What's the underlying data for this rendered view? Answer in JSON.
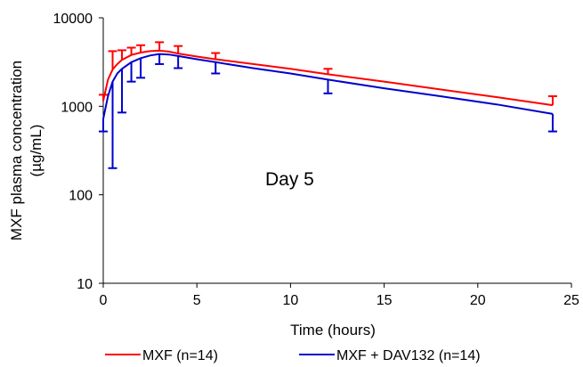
{
  "chart_data": {
    "type": "line",
    "annotation": "Day 5",
    "xlabel": "Time (hours)",
    "ylabel_lines": [
      "MXF plasma concentration",
      "(µg/mL)"
    ],
    "xlim": [
      0,
      25
    ],
    "ylim": [
      10,
      10000
    ],
    "yscale": "log",
    "grid": false,
    "legend_position": "bottom",
    "x_ticks": [
      0,
      5,
      10,
      15,
      20,
      25
    ],
    "y_ticks": [
      10,
      100,
      1000,
      10000
    ],
    "x_tick_labels": [
      "0",
      "5",
      "10",
      "15",
      "20",
      "25"
    ],
    "y_tick_labels": [
      "10",
      "100",
      "1000",
      "10000"
    ],
    "series": [
      {
        "name": "MXF (n=14)",
        "color": "#ff0000",
        "curve": [
          [
            0,
            1150
          ],
          [
            0.25,
            2000
          ],
          [
            0.5,
            2600
          ],
          [
            0.75,
            3000
          ],
          [
            1,
            3350
          ],
          [
            1.5,
            3800
          ],
          [
            2,
            4050
          ],
          [
            2.5,
            4200
          ],
          [
            3,
            4250
          ],
          [
            3.5,
            4150
          ],
          [
            4,
            3950
          ],
          [
            5,
            3650
          ],
          [
            6,
            3400
          ],
          [
            8,
            3000
          ],
          [
            10,
            2650
          ],
          [
            12,
            2300
          ],
          [
            15,
            1900
          ],
          [
            18,
            1550
          ],
          [
            21,
            1270
          ],
          [
            24,
            1030
          ]
        ],
        "error_bars": [
          {
            "x": 0,
            "upper": 1350
          },
          {
            "x": 0.5,
            "upper": 4200
          },
          {
            "x": 1,
            "upper": 4300
          },
          {
            "x": 1.5,
            "upper": 4600
          },
          {
            "x": 2,
            "upper": 4900
          },
          {
            "x": 3,
            "upper": 5300
          },
          {
            "x": 4,
            "upper": 4800
          },
          {
            "x": 6,
            "upper": 4000
          },
          {
            "x": 12,
            "upper": 2650
          },
          {
            "x": 24,
            "upper": 1300
          }
        ]
      },
      {
        "name": "MXF + DAV132 (n=14)",
        "color": "#0000cc",
        "curve": [
          [
            0,
            720
          ],
          [
            0.25,
            1300
          ],
          [
            0.5,
            1900
          ],
          [
            0.75,
            2350
          ],
          [
            1,
            2650
          ],
          [
            1.5,
            3150
          ],
          [
            2,
            3500
          ],
          [
            2.5,
            3750
          ],
          [
            3,
            3900
          ],
          [
            3.5,
            3850
          ],
          [
            4,
            3700
          ],
          [
            5,
            3400
          ],
          [
            6,
            3150
          ],
          [
            8,
            2700
          ],
          [
            10,
            2350
          ],
          [
            12,
            2000
          ],
          [
            15,
            1600
          ],
          [
            18,
            1300
          ],
          [
            21,
            1050
          ],
          [
            24,
            820
          ]
        ],
        "error_bars": [
          {
            "x": 0,
            "lower": 520
          },
          {
            "x": 0.5,
            "lower": 200
          },
          {
            "x": 1,
            "lower": 850
          },
          {
            "x": 1.5,
            "lower": 1900
          },
          {
            "x": 2,
            "lower": 2100
          },
          {
            "x": 3,
            "lower": 3000
          },
          {
            "x": 4,
            "lower": 2700
          },
          {
            "x": 6,
            "lower": 2350
          },
          {
            "x": 12,
            "lower": 1400
          },
          {
            "x": 24,
            "lower": 520
          }
        ]
      }
    ]
  }
}
